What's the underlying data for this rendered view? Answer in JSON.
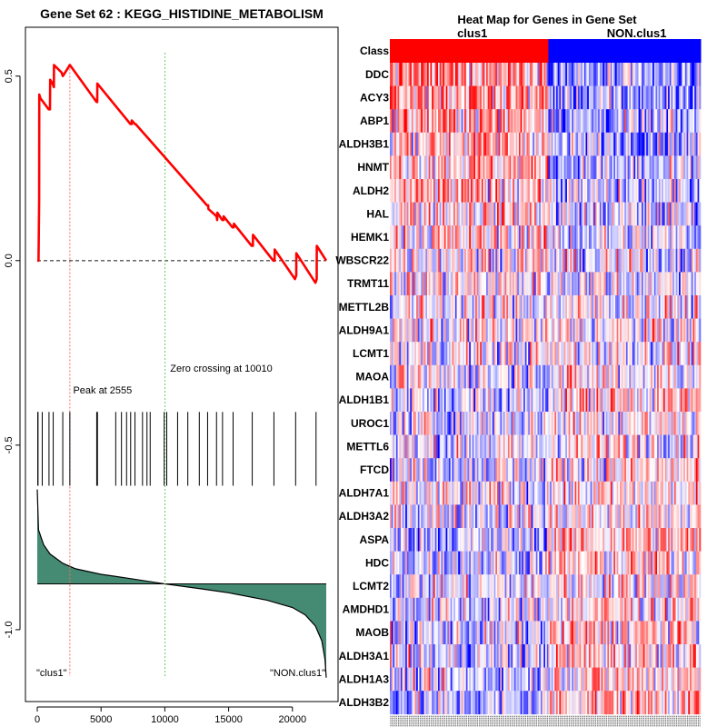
{
  "chart_data": [
    {
      "type": "line",
      "name": "enrichment-plot",
      "title": "Gene Set  62 : KEGG_HISTIDINE_METABOLISM",
      "xlabel": "",
      "ylabel": "",
      "xlim": [
        0,
        22650
      ],
      "ylim": [
        -1.18,
        0.62
      ],
      "x_ticks": [
        0,
        5000,
        10000,
        15000,
        20000
      ],
      "x_tick_labels": [
        "0",
        "5000",
        "10000",
        "15000",
        "20000"
      ],
      "y_ticks": [
        0.5,
        0.0,
        -0.5,
        -1.0
      ],
      "y_tick_labels": [
        "0.5",
        "0.0",
        "-0.5",
        "-1.0"
      ],
      "running_es": {
        "name": "Running enrichment score",
        "color": "#ff0000",
        "x": [
          0,
          100,
          150,
          160,
          250,
          900,
          1000,
          1010,
          1200,
          1300,
          1310,
          1900,
          2000,
          2010,
          2555,
          4650,
          4700,
          4710,
          7300,
          7400,
          7410,
          7650,
          7700,
          7710,
          10010,
          13300,
          13400,
          13410,
          14050,
          14100,
          14110,
          14500,
          14600,
          14610,
          15300,
          15400,
          15410,
          16800,
          16900,
          16910,
          18500,
          18600,
          18610,
          20200,
          20300,
          20310,
          21800,
          21900,
          21910,
          22650
        ],
        "y": [
          0,
          0,
          0.17,
          0.45,
          0.44,
          0.41,
          0.41,
          0.49,
          0.48,
          0.47,
          0.53,
          0.51,
          0.5,
          0.5,
          0.53,
          0.43,
          0.43,
          0.48,
          0.37,
          0.37,
          0.38,
          0.37,
          0.37,
          0.37,
          0.28,
          0.15,
          0.15,
          0.14,
          0.12,
          0.11,
          0.13,
          0.11,
          0.11,
          0.12,
          0.09,
          0.09,
          0.1,
          0.04,
          0.04,
          0.07,
          0.0,
          0.0,
          0.03,
          -0.05,
          -0.04,
          0.02,
          -0.06,
          -0.05,
          0.04,
          0.0
        ]
      },
      "baseline": 0.0,
      "peak": {
        "x": 2555,
        "label": "Peak at 2555",
        "color": "#ff6666"
      },
      "zero_crossing": {
        "x": 10010,
        "label": "Zero crossing at 10010",
        "color": "#66cc66"
      },
      "gene_hits": {
        "y_range": [
          -0.41,
          -0.61
        ],
        "x": [
          40,
          60,
          390,
          920,
          1250,
          2000,
          2555,
          4660,
          4720,
          6150,
          6600,
          7000,
          7320,
          7660,
          8250,
          8600,
          8850,
          9950,
          10150,
          11000,
          11800,
          12700,
          13350,
          14050,
          14520,
          15350,
          16850,
          18550,
          20250,
          21850
        ]
      },
      "ranked_metric": {
        "fill": "#458b74",
        "zero_level": -0.876,
        "x": [
          0,
          100,
          500,
          1000,
          2000,
          3000,
          5000,
          7000,
          10010,
          13000,
          15000,
          18000,
          20000,
          21000,
          21800,
          22300,
          22550,
          22650
        ],
        "y": [
          -0.62,
          -0.73,
          -0.77,
          -0.795,
          -0.82,
          -0.835,
          -0.85,
          -0.86,
          -0.876,
          -0.89,
          -0.9,
          -0.92,
          -0.94,
          -0.96,
          -0.99,
          -1.03,
          -1.08,
          -1.13
        ]
      },
      "class_labels": {
        "left": "\"clus1\"",
        "right": "\"NON.clus1\""
      }
    },
    {
      "type": "heatmap",
      "name": "gene-set-heatmap",
      "title": "Heat Map for Genes in Gene Set",
      "class_row_label": "Class",
      "classes": [
        {
          "label": "clus1",
          "color": "#ff0000",
          "fraction": 0.51
        },
        {
          "label": "NON.clus1",
          "color": "#0000ff",
          "fraction": 0.49
        }
      ],
      "genes": [
        "DDC",
        "ACY3",
        "ABP1",
        "ALDH3B1",
        "HNMT",
        "ALDH2",
        "HAL",
        "HEMK1",
        "WBSCR22",
        "TRMT11",
        "METTL2B",
        "ALDH9A1",
        "LCMT1",
        "MAOA",
        "ALDH1B1",
        "UROC1",
        "METTL6",
        "FTCD",
        "ALDH7A1",
        "ALDH3A2",
        "ASPA",
        "HDC",
        "LCMT2",
        "AMDHD1",
        "MAOB",
        "ALDH3A1",
        "ALDH1A3",
        "ALDH3B2"
      ],
      "n_samples": 200,
      "gene_bias": [
        0.45,
        0.4,
        0.35,
        0.3,
        0.3,
        0.25,
        0.2,
        0.15,
        0.1,
        0.05,
        0.0,
        0.0,
        -0.02,
        -0.05,
        -0.2,
        -0.1,
        -0.1,
        -0.1,
        -0.05,
        -0.05,
        -0.25,
        -0.15,
        -0.1,
        -0.15,
        -0.2,
        -0.2,
        -0.2,
        -0.3
      ],
      "color_scale": {
        "low": "#0000ff",
        "mid": "#ffffff",
        "high": "#ff0000"
      }
    }
  ]
}
